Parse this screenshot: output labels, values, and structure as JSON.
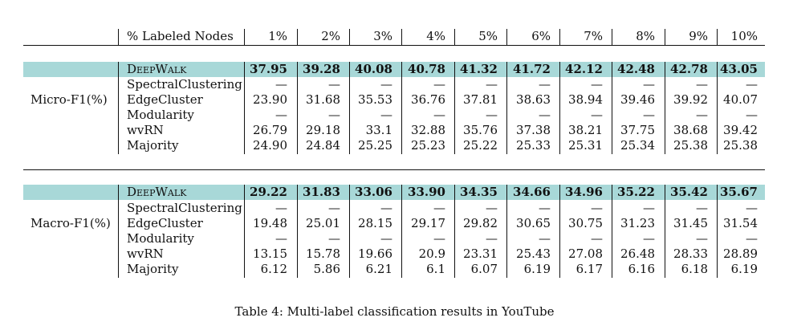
{
  "header": {
    "row_label": "% Labeled Nodes",
    "columns": [
      "1%",
      "2%",
      "3%",
      "4%",
      "5%",
      "6%",
      "7%",
      "8%",
      "9%",
      "10%"
    ]
  },
  "groups": [
    {
      "metric": "Micro-F1(%)",
      "rows": [
        {
          "method": "DeepWalk",
          "highlight": true,
          "values": [
            "37.95",
            "39.28",
            "40.08",
            "40.78",
            "41.32",
            "41.72",
            "42.12",
            "42.48",
            "42.78",
            "43.05"
          ]
        },
        {
          "method": "SpectralClustering",
          "values": [
            "—",
            "—",
            "—",
            "—",
            "—",
            "—",
            "—",
            "—",
            "—",
            "—"
          ]
        },
        {
          "method": "EdgeCluster",
          "values": [
            "23.90",
            "31.68",
            "35.53",
            "36.76",
            "37.81",
            "38.63",
            "38.94",
            "39.46",
            "39.92",
            "40.07"
          ]
        },
        {
          "method": "Modularity",
          "values": [
            "—",
            "—",
            "—",
            "—",
            "—",
            "—",
            "—",
            "—",
            "—",
            "—"
          ]
        },
        {
          "method": "wvRN",
          "values": [
            "26.79",
            "29.18",
            "33.1",
            "32.88",
            "35.76",
            "37.38",
            "38.21",
            "37.75",
            "38.68",
            "39.42"
          ]
        },
        {
          "method": "Majority",
          "values": [
            "24.90",
            "24.84",
            "25.25",
            "25.23",
            "25.22",
            "25.33",
            "25.31",
            "25.34",
            "25.38",
            "25.38"
          ]
        }
      ]
    },
    {
      "metric": "Macro-F1(%)",
      "rows": [
        {
          "method": "DeepWalk",
          "highlight": true,
          "values": [
            "29.22",
            "31.83",
            "33.06",
            "33.90",
            "34.35",
            "34.66",
            "34.96",
            "35.22",
            "35.42",
            "35.67"
          ]
        },
        {
          "method": "SpectralClustering",
          "values": [
            "—",
            "—",
            "—",
            "—",
            "—",
            "—",
            "—",
            "—",
            "—",
            "—"
          ]
        },
        {
          "method": "EdgeCluster",
          "values": [
            "19.48",
            "25.01",
            "28.15",
            "29.17",
            "29.82",
            "30.65",
            "30.75",
            "31.23",
            "31.45",
            "31.54"
          ]
        },
        {
          "method": "Modularity",
          "values": [
            "—",
            "—",
            "—",
            "—",
            "—",
            "—",
            "—",
            "—",
            "—",
            "—"
          ]
        },
        {
          "method": "wvRN",
          "values": [
            "13.15",
            "15.78",
            "19.66",
            "20.9",
            "23.31",
            "25.43",
            "27.08",
            "26.48",
            "28.33",
            "28.89"
          ]
        },
        {
          "method": "Majority",
          "values": [
            "6.12",
            "5.86",
            "6.21",
            "6.1",
            "6.07",
            "6.19",
            "6.17",
            "6.16",
            "6.18",
            "6.19"
          ]
        }
      ]
    }
  ],
  "caption": "Table 4: Multi-label classification results in YouTube",
  "colors": {
    "highlight": "#a8d8d8"
  }
}
